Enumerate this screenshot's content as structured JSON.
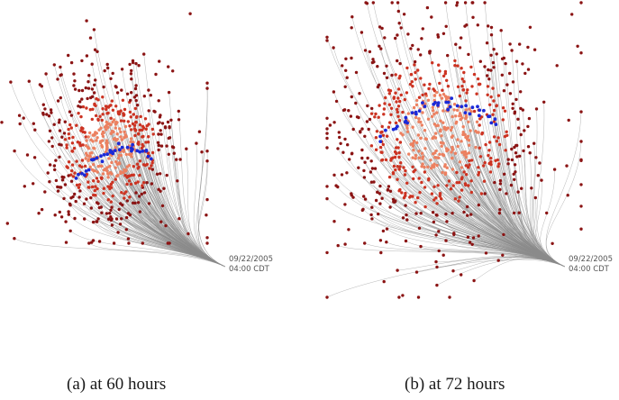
{
  "panels": [
    {
      "id": "a",
      "caption": "(a) at 60 hours",
      "timestamp_date": "09/22/2005",
      "timestamp_time": "04:00 CDT"
    },
    {
      "id": "b",
      "caption": "(b) at 72 hours",
      "timestamp_date": "09/22/2005",
      "timestamp_time": "04:00 CDT"
    }
  ],
  "colors": {
    "trajectory": "#8a8a8a",
    "outer_point": "#8b1414",
    "mid_point": "#cc3322",
    "inner_point": "#ec8060",
    "highlight_point": "#1a2ad8"
  }
}
